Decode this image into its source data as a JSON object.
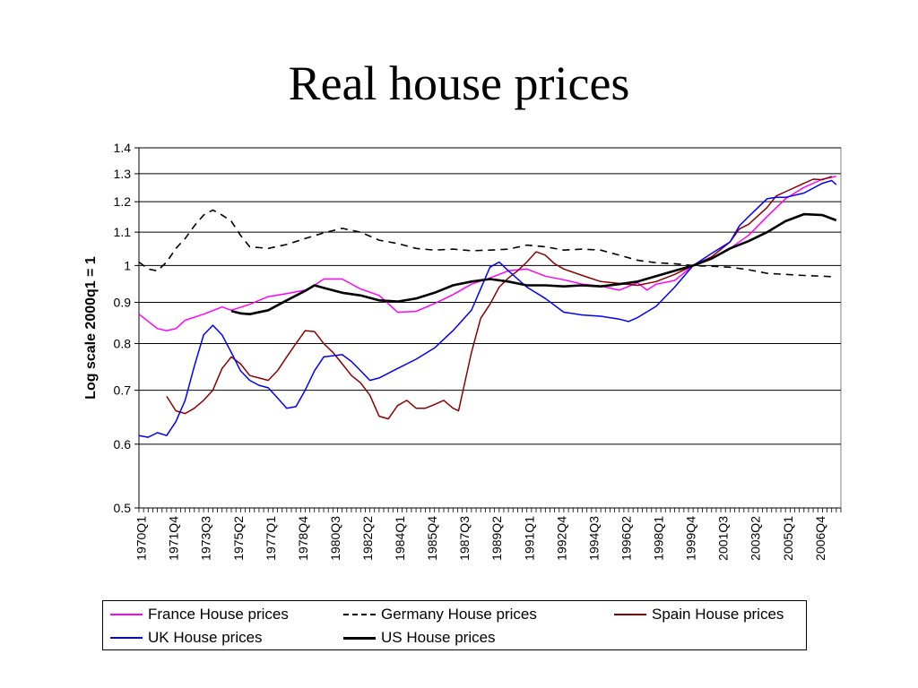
{
  "slide": {
    "title": "Real house prices"
  },
  "chart_data": {
    "type": "line",
    "title": "",
    "xlabel": "",
    "ylabel": "Log scale 2000q1 = 1",
    "ylim": [
      0.5,
      1.4
    ],
    "yscale": "log",
    "grid": true,
    "legend_position": "bottom",
    "yticks": [
      "0.5",
      "0.6",
      "0.7",
      "0.8",
      "0.9",
      "1",
      "1.1",
      "1.2",
      "1.3",
      "1.4"
    ],
    "x_tick_labels": [
      "1970Q1",
      "1971Q4",
      "1973Q3",
      "1975Q2",
      "1977Q1",
      "1978Q4",
      "1980Q3",
      "1982Q2",
      "1984Q1",
      "1985Q4",
      "1987Q3",
      "1989Q2",
      "1991Q1",
      "1992Q4",
      "1994Q3",
      "1996Q2",
      "1998Q1",
      "1999Q4",
      "2001Q3",
      "2003Q2",
      "2005Q1",
      "2006Q4"
    ],
    "x_range": [
      "1970Q1",
      "2007Q4"
    ],
    "series": [
      {
        "name": "France House prices",
        "color": "#ff00ff",
        "dash": "solid",
        "width": 1.5,
        "points": [
          [
            1970.0,
            0.87
          ],
          [
            1971.0,
            0.835
          ],
          [
            1971.5,
            0.83
          ],
          [
            1972.0,
            0.835
          ],
          [
            1972.5,
            0.855
          ],
          [
            1973.5,
            0.87
          ],
          [
            1974.5,
            0.888
          ],
          [
            1975.0,
            0.88
          ],
          [
            1976.0,
            0.895
          ],
          [
            1977.0,
            0.915
          ],
          [
            1978.0,
            0.923
          ],
          [
            1979.0,
            0.932
          ],
          [
            1979.5,
            0.945
          ],
          [
            1980.0,
            0.962
          ],
          [
            1981.0,
            0.962
          ],
          [
            1982.0,
            0.935
          ],
          [
            1983.0,
            0.918
          ],
          [
            1984.0,
            0.875
          ],
          [
            1985.0,
            0.877
          ],
          [
            1986.0,
            0.897
          ],
          [
            1987.0,
            0.92
          ],
          [
            1988.0,
            0.948
          ],
          [
            1989.0,
            0.965
          ],
          [
            1990.0,
            0.985
          ],
          [
            1991.0,
            0.99
          ],
          [
            1992.0,
            0.97
          ],
          [
            1993.0,
            0.96
          ],
          [
            1994.0,
            0.948
          ],
          [
            1995.0,
            0.943
          ],
          [
            1996.0,
            0.932
          ],
          [
            1997.0,
            0.952
          ],
          [
            1997.5,
            0.932
          ],
          [
            1998.0,
            0.948
          ],
          [
            1999.0,
            0.958
          ],
          [
            2000.0,
            1.0
          ],
          [
            2001.0,
            1.02
          ],
          [
            2002.0,
            1.05
          ],
          [
            2003.0,
            1.09
          ],
          [
            2004.0,
            1.15
          ],
          [
            2005.0,
            1.21
          ],
          [
            2006.0,
            1.25
          ],
          [
            2007.0,
            1.28
          ],
          [
            2007.75,
            1.29
          ]
        ]
      },
      {
        "name": "Germany House prices",
        "color": "#000000",
        "dash": "8,6",
        "width": 1.6,
        "points": [
          [
            1970.0,
            1.01
          ],
          [
            1970.5,
            0.99
          ],
          [
            1971.0,
            0.985
          ],
          [
            1971.5,
            1.01
          ],
          [
            1972.0,
            1.05
          ],
          [
            1972.5,
            1.08
          ],
          [
            1973.0,
            1.12
          ],
          [
            1973.5,
            1.155
          ],
          [
            1974.0,
            1.172
          ],
          [
            1974.5,
            1.155
          ],
          [
            1975.0,
            1.135
          ],
          [
            1975.5,
            1.09
          ],
          [
            1976.0,
            1.055
          ],
          [
            1977.0,
            1.05
          ],
          [
            1978.0,
            1.062
          ],
          [
            1979.0,
            1.08
          ],
          [
            1980.0,
            1.098
          ],
          [
            1981.0,
            1.112
          ],
          [
            1982.0,
            1.1
          ],
          [
            1983.0,
            1.075
          ],
          [
            1984.0,
            1.065
          ],
          [
            1985.0,
            1.05
          ],
          [
            1986.0,
            1.045
          ],
          [
            1987.0,
            1.048
          ],
          [
            1988.0,
            1.043
          ],
          [
            1989.0,
            1.045
          ],
          [
            1990.0,
            1.048
          ],
          [
            1991.0,
            1.06
          ],
          [
            1992.0,
            1.055
          ],
          [
            1993.0,
            1.045
          ],
          [
            1994.0,
            1.048
          ],
          [
            1995.0,
            1.045
          ],
          [
            1996.0,
            1.03
          ],
          [
            1997.0,
            1.015
          ],
          [
            1998.0,
            1.008
          ],
          [
            1999.0,
            1.005
          ],
          [
            2000.0,
            1.0
          ],
          [
            2001.0,
            0.998
          ],
          [
            2002.0,
            0.995
          ],
          [
            2003.0,
            0.988
          ],
          [
            2004.0,
            0.978
          ],
          [
            2005.0,
            0.975
          ],
          [
            2006.0,
            0.972
          ],
          [
            2007.0,
            0.97
          ],
          [
            2007.75,
            0.968
          ]
        ]
      },
      {
        "name": "Spain House prices",
        "color": "#8b0000",
        "dash": "solid",
        "width": 1.5,
        "points": [
          [
            1971.5,
            0.688
          ],
          [
            1972.0,
            0.66
          ],
          [
            1972.5,
            0.655
          ],
          [
            1973.0,
            0.665
          ],
          [
            1973.5,
            0.68
          ],
          [
            1974.0,
            0.7
          ],
          [
            1974.5,
            0.745
          ],
          [
            1975.0,
            0.77
          ],
          [
            1975.5,
            0.755
          ],
          [
            1976.0,
            0.73
          ],
          [
            1976.5,
            0.725
          ],
          [
            1977.0,
            0.72
          ],
          [
            1977.5,
            0.74
          ],
          [
            1978.0,
            0.77
          ],
          [
            1978.5,
            0.8
          ],
          [
            1979.0,
            0.83
          ],
          [
            1979.5,
            0.828
          ],
          [
            1980.0,
            0.8
          ],
          [
            1980.5,
            0.78
          ],
          [
            1981.0,
            0.755
          ],
          [
            1981.5,
            0.73
          ],
          [
            1982.0,
            0.715
          ],
          [
            1982.5,
            0.69
          ],
          [
            1983.0,
            0.65
          ],
          [
            1983.5,
            0.645
          ],
          [
            1984.0,
            0.67
          ],
          [
            1984.5,
            0.68
          ],
          [
            1985.0,
            0.665
          ],
          [
            1985.5,
            0.665
          ],
          [
            1986.0,
            0.672
          ],
          [
            1986.5,
            0.68
          ],
          [
            1987.0,
            0.665
          ],
          [
            1987.3,
            0.66
          ],
          [
            1988.0,
            0.78
          ],
          [
            1988.5,
            0.86
          ],
          [
            1989.0,
            0.895
          ],
          [
            1989.5,
            0.94
          ],
          [
            1990.0,
            0.965
          ],
          [
            1990.5,
            0.985
          ],
          [
            1991.0,
            1.01
          ],
          [
            1991.5,
            1.04
          ],
          [
            1992.0,
            1.03
          ],
          [
            1992.5,
            1.005
          ],
          [
            1993.0,
            0.99
          ],
          [
            1994.0,
            0.972
          ],
          [
            1995.0,
            0.955
          ],
          [
            1996.0,
            0.95
          ],
          [
            1997.0,
            0.945
          ],
          [
            1998.0,
            0.955
          ],
          [
            1999.0,
            0.975
          ],
          [
            2000.0,
            1.0
          ],
          [
            2001.0,
            1.025
          ],
          [
            2002.0,
            1.07
          ],
          [
            2002.5,
            1.11
          ],
          [
            2003.0,
            1.125
          ],
          [
            2004.0,
            1.18
          ],
          [
            2004.5,
            1.22
          ],
          [
            2005.0,
            1.235
          ],
          [
            2006.0,
            1.265
          ],
          [
            2006.5,
            1.28
          ],
          [
            2007.0,
            1.278
          ],
          [
            2007.5,
            1.29
          ]
        ]
      },
      {
        "name": "UK House prices",
        "color": "#0000ff",
        "dash": "solid",
        "width": 1.5,
        "points": [
          [
            1970.0,
            0.615
          ],
          [
            1970.5,
            0.612
          ],
          [
            1971.0,
            0.62
          ],
          [
            1971.5,
            0.615
          ],
          [
            1972.0,
            0.64
          ],
          [
            1972.5,
            0.68
          ],
          [
            1973.0,
            0.75
          ],
          [
            1973.5,
            0.82
          ],
          [
            1974.0,
            0.843
          ],
          [
            1974.5,
            0.82
          ],
          [
            1975.0,
            0.78
          ],
          [
            1975.5,
            0.74
          ],
          [
            1976.0,
            0.72
          ],
          [
            1976.5,
            0.71
          ],
          [
            1977.0,
            0.705
          ],
          [
            1977.5,
            0.685
          ],
          [
            1978.0,
            0.665
          ],
          [
            1978.5,
            0.668
          ],
          [
            1979.0,
            0.7
          ],
          [
            1979.5,
            0.74
          ],
          [
            1980.0,
            0.77
          ],
          [
            1981.0,
            0.775
          ],
          [
            1981.5,
            0.76
          ],
          [
            1982.0,
            0.74
          ],
          [
            1982.5,
            0.72
          ],
          [
            1983.0,
            0.725
          ],
          [
            1984.0,
            0.745
          ],
          [
            1985.0,
            0.765
          ],
          [
            1986.0,
            0.79
          ],
          [
            1987.0,
            0.83
          ],
          [
            1988.0,
            0.88
          ],
          [
            1989.0,
            0.995
          ],
          [
            1989.5,
            1.01
          ],
          [
            1990.0,
            0.985
          ],
          [
            1991.0,
            0.94
          ],
          [
            1992.0,
            0.91
          ],
          [
            1993.0,
            0.875
          ],
          [
            1994.0,
            0.868
          ],
          [
            1995.0,
            0.865
          ],
          [
            1996.0,
            0.858
          ],
          [
            1996.5,
            0.852
          ],
          [
            1997.0,
            0.862
          ],
          [
            1998.0,
            0.89
          ],
          [
            1999.0,
            0.94
          ],
          [
            2000.0,
            1.0
          ],
          [
            2001.0,
            1.035
          ],
          [
            2002.0,
            1.07
          ],
          [
            2002.5,
            1.12
          ],
          [
            2003.0,
            1.15
          ],
          [
            2004.0,
            1.21
          ],
          [
            2004.5,
            1.215
          ],
          [
            2005.0,
            1.215
          ],
          [
            2006.0,
            1.23
          ],
          [
            2007.0,
            1.265
          ],
          [
            2007.5,
            1.275
          ],
          [
            2007.75,
            1.26
          ]
        ]
      },
      {
        "name": "US House prices",
        "color": "#000000",
        "dash": "solid",
        "width": 2.6,
        "points": [
          [
            1975.0,
            0.878
          ],
          [
            1975.5,
            0.872
          ],
          [
            1976.0,
            0.87
          ],
          [
            1977.0,
            0.88
          ],
          [
            1978.0,
            0.905
          ],
          [
            1979.0,
            0.93
          ],
          [
            1979.5,
            0.945
          ],
          [
            1980.0,
            0.938
          ],
          [
            1981.0,
            0.925
          ],
          [
            1982.0,
            0.918
          ],
          [
            1983.0,
            0.905
          ],
          [
            1984.0,
            0.902
          ],
          [
            1985.0,
            0.91
          ],
          [
            1986.0,
            0.925
          ],
          [
            1987.0,
            0.945
          ],
          [
            1988.0,
            0.955
          ],
          [
            1989.0,
            0.962
          ],
          [
            1990.0,
            0.955
          ],
          [
            1991.0,
            0.945
          ],
          [
            1992.0,
            0.945
          ],
          [
            1993.0,
            0.942
          ],
          [
            1994.0,
            0.945
          ],
          [
            1995.0,
            0.942
          ],
          [
            1996.0,
            0.948
          ],
          [
            1997.0,
            0.955
          ],
          [
            1998.0,
            0.97
          ],
          [
            1999.0,
            0.985
          ],
          [
            2000.0,
            1.0
          ],
          [
            2001.0,
            1.02
          ],
          [
            2002.0,
            1.05
          ],
          [
            2003.0,
            1.072
          ],
          [
            2004.0,
            1.1
          ],
          [
            2005.0,
            1.135
          ],
          [
            2006.0,
            1.158
          ],
          [
            2007.0,
            1.155
          ],
          [
            2007.75,
            1.138
          ]
        ]
      }
    ]
  }
}
